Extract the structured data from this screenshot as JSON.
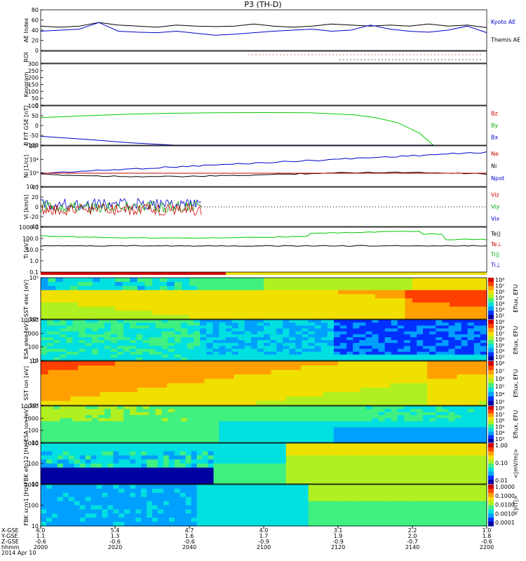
{
  "chart_data": {
    "type": "line",
    "title": "P3 (TH-D)",
    "panels": [
      {
        "id": "ae",
        "ylabel": "AE Index",
        "yticks": [
          "80",
          "60",
          "40",
          "20",
          "0"
        ],
        "legend": [
          {
            "name": "Kyoto AE",
            "color": "#0000cc"
          },
          {
            "name": "Themis AE",
            "color": "#000000"
          }
        ]
      },
      {
        "id": "roi",
        "ylabel": "ROI",
        "yticks": []
      },
      {
        "id": "keogram",
        "ylabel": "Keogram",
        "yticks": [
          "300",
          "250",
          "200",
          "150",
          "100",
          "50",
          "0"
        ]
      },
      {
        "id": "bfit",
        "ylabel": "B FIT GSE [nT]",
        "yticks": [
          "100",
          "50",
          "0",
          "-50",
          "-100"
        ],
        "legend": [
          {
            "name": "Bz",
            "color": "#cc0000"
          },
          {
            "name": "By",
            "color": "#00aa00"
          },
          {
            "name": "Bx",
            "color": "#0000cc"
          }
        ]
      },
      {
        "id": "ni",
        "ylabel": "Ni [1/cc]",
        "yticks": [
          "10⁸",
          "10⁴",
          "10⁰",
          "10⁻³"
        ],
        "legend": [
          {
            "name": "Ne",
            "color": "#cc0000"
          },
          {
            "name": "Ni",
            "color": "#000000"
          },
          {
            "name": "Npot",
            "color": "#0000cc"
          }
        ]
      },
      {
        "id": "vi",
        "ylabel": "Vi [km/s]",
        "yticks": [
          "40",
          "20",
          "0",
          "-20",
          "-40"
        ],
        "legend": [
          {
            "name": "Viz",
            "color": "#cc0000"
          },
          {
            "name": "Viy",
            "color": "#00aa00"
          },
          {
            "name": "Vix",
            "color": "#0000cc"
          }
        ]
      },
      {
        "id": "ti",
        "ylabel": "Ti [eV]",
        "yticks": [
          "1000.0",
          "100.0",
          "10.0",
          "1.0",
          "0.1"
        ],
        "legend": [
          {
            "name": "Te||",
            "color": "#000000"
          },
          {
            "name": "Te⊥",
            "color": "#cc0000"
          },
          {
            "name": "Ti||",
            "color": "#00aa00"
          },
          {
            "name": "Ti⊥",
            "color": "#0000cc"
          }
        ]
      },
      {
        "id": "sst_e",
        "ylabel": "SST elec [eV]",
        "yticks": [
          "10⁵",
          "10⁴"
        ],
        "cbar": {
          "label": "Eflux, EFU",
          "ticks": [
            "10⁸",
            "10⁷",
            "10⁶",
            "10⁵",
            "10⁴",
            "10³",
            "10²"
          ]
        }
      },
      {
        "id": "esa_e",
        "ylabel": "ESA elec [eV]",
        "yticks": [
          "10000",
          "1000",
          "100",
          "10"
        ],
        "cbar": {
          "label": "Eflux, EFU",
          "ticks": [
            "10⁹",
            "10⁸",
            "10⁷",
            "10⁶",
            "10⁵",
            "10⁴",
            "10³"
          ]
        }
      },
      {
        "id": "sst_i",
        "ylabel": "SST ion [eV]",
        "yticks": [
          "10⁵",
          "10⁴"
        ],
        "cbar": {
          "label": "Eflux, EFU",
          "ticks": [
            "10⁸",
            "10⁷",
            "10⁶",
            "10⁵",
            "10⁴",
            "10³"
          ]
        }
      },
      {
        "id": "esa_i",
        "ylabel": "ESA ion [eV]",
        "yticks": [
          "10000",
          "1000",
          "100",
          "10"
        ],
        "cbar": {
          "label": "Eflux, EFU",
          "ticks": [
            "10⁸",
            "10⁷",
            "10⁶",
            "10⁵",
            "10⁴",
            "10³"
          ]
        }
      },
      {
        "id": "fbk_e",
        "ylabel": "FBK efp12 [Hz]",
        "yticks": [
          "1000",
          "100",
          "10"
        ],
        "cbar": {
          "label": "<|mV/m|>",
          "ticks": [
            "1.00",
            "0.10",
            "0.01"
          ]
        }
      },
      {
        "id": "fbk_b",
        "ylabel": "FBK scm1 [Hz]",
        "yticks": [
          "1000",
          "100",
          "10"
        ],
        "cbar": {
          "label": "<|nT|>",
          "ticks": [
            "1.0000",
            "0.1000",
            "0.0100",
            "0.0010",
            "0.0001"
          ]
        }
      }
    ],
    "bfit_x": [
      0,
      0.1,
      0.2,
      0.3,
      0.4,
      0.5,
      0.6,
      0.7,
      0.75,
      0.8,
      0.85,
      0.88
    ],
    "bfit_by": [
      40,
      50,
      58,
      63,
      65,
      66,
      65,
      55,
      40,
      15,
      -40,
      -100
    ],
    "bfit_bx": [
      -55,
      -70,
      -88,
      -100,
      -100,
      -100,
      -100,
      -100,
      -100,
      -100,
      -100,
      -100
    ],
    "ae_kyoto": [
      38,
      40,
      42,
      55,
      38,
      36,
      35,
      38,
      34,
      30,
      32,
      35,
      38,
      40,
      42,
      38,
      40,
      50,
      42,
      38,
      36,
      40,
      48,
      35
    ],
    "ae_themis": [
      48,
      46,
      48,
      55,
      50,
      48,
      46,
      50,
      48,
      47,
      48,
      52,
      48,
      46,
      48,
      52,
      50,
      48,
      50,
      48,
      52,
      48,
      50,
      45
    ],
    "xaxis": {
      "row_labels": [
        "X-GSE",
        "Y-GSE",
        "Z-GSE",
        "hhmm",
        "2014 Apr 10"
      ],
      "ticks": [
        {
          "x": "6.0",
          "y": "1.1",
          "z": "-0.6",
          "t": "2000"
        },
        {
          "x": "5.4",
          "y": "1.3",
          "z": "-0.6",
          "t": "2020"
        },
        {
          "x": "4.7",
          "y": "1.6",
          "z": "-0.6",
          "t": "2040"
        },
        {
          "x": "4.0",
          "y": "1.7",
          "z": "-0.9",
          "t": "2100"
        },
        {
          "x": "3.1",
          "y": "1.9",
          "z": "-0.9",
          "t": "2120"
        },
        {
          "x": "2.2",
          "y": "2.0",
          "z": "-0.7",
          "t": "2140"
        },
        {
          "x": "1.0",
          "y": "1.8",
          "z": "-0.6",
          "t": "2200"
        }
      ]
    }
  }
}
